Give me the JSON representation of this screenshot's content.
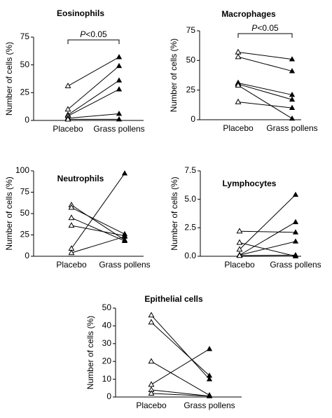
{
  "chart_data": [
    {
      "type": "line",
      "title": "Eosinophils",
      "ylabel": "Number of cells (%)",
      "categories": [
        "Placebo",
        "Grass pollens"
      ],
      "ylim": [
        0,
        75
      ],
      "yticks": [
        "0",
        "25",
        "50",
        "75"
      ],
      "significance": {
        "prefix": "P",
        "text": "<0.05"
      },
      "pairs": [
        [
          31,
          57
        ],
        [
          10,
          49
        ],
        [
          5,
          36
        ],
        [
          4,
          28
        ],
        [
          2,
          6
        ],
        [
          1,
          1
        ]
      ]
    },
    {
      "type": "line",
      "title": "Macrophages",
      "ylabel": "Number of cells (%)",
      "categories": [
        "Placebo",
        "Grass pollens"
      ],
      "ylim": [
        0,
        75
      ],
      "yticks": [
        "0",
        "25",
        "50",
        "75"
      ],
      "significance": {
        "prefix": "P",
        "text": "<0.05"
      },
      "pairs": [
        [
          57,
          51
        ],
        [
          53,
          41
        ],
        [
          31,
          21
        ],
        [
          30,
          17
        ],
        [
          29,
          1
        ],
        [
          15,
          10
        ]
      ]
    },
    {
      "type": "line",
      "title": "Neutrophils",
      "ylabel": "Number of cells (%)",
      "categories": [
        "Placebo",
        "Grass pollens"
      ],
      "ylim": [
        0,
        100
      ],
      "yticks": [
        "0",
        "25",
        "50",
        "75",
        "100"
      ],
      "pairs": [
        [
          60,
          19
        ],
        [
          57,
          26
        ],
        [
          45,
          18
        ],
        [
          36,
          24
        ],
        [
          9,
          97
        ],
        [
          4,
          23
        ]
      ]
    },
    {
      "type": "line",
      "title": "Lymphocytes",
      "ylabel": "Number of cells (%)",
      "categories": [
        "Placebo",
        "Grass pollens"
      ],
      "ylim": [
        0,
        7.5
      ],
      "yticks": [
        "0.0",
        "2.5",
        "5.0",
        "7.5"
      ],
      "pairs": [
        [
          2.2,
          2.1
        ],
        [
          1.2,
          0.0
        ],
        [
          0.6,
          5.4
        ],
        [
          0.1,
          3.0
        ],
        [
          0.1,
          1.3
        ],
        [
          0.05,
          0.1
        ]
      ]
    },
    {
      "type": "line",
      "title": "Epithelial cells",
      "ylabel": "Number of cells (%)",
      "categories": [
        "Placebo",
        "Grass pollens"
      ],
      "ylim": [
        0,
        50
      ],
      "yticks": [
        "0",
        "10",
        "20",
        "30",
        "40",
        "50"
      ],
      "pairs": [
        [
          46,
          10
        ],
        [
          42,
          12
        ],
        [
          20,
          1
        ],
        [
          7,
          27
        ],
        [
          4,
          0.5
        ],
        [
          2,
          0.5
        ]
      ]
    }
  ]
}
